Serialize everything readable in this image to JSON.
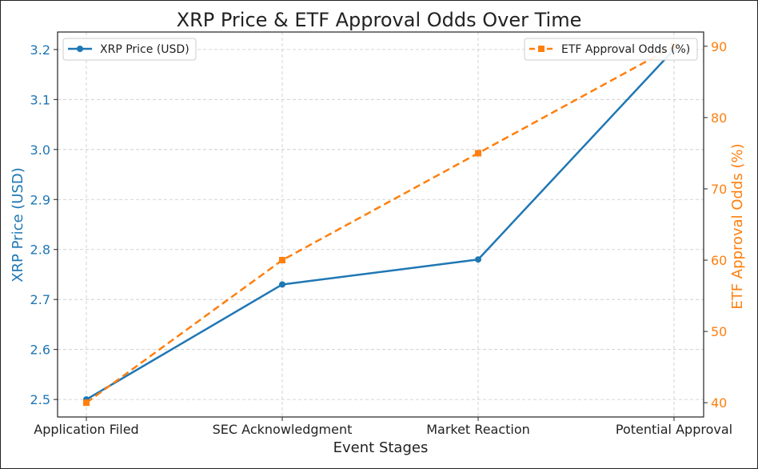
{
  "chart_data": {
    "type": "line",
    "title": "XRP Price & ETF Approval Odds Over Time",
    "xlabel": "Event Stages",
    "categories": [
      "Application Filed",
      "SEC Acknowledgment",
      "Market Reaction",
      "Potential Approval"
    ],
    "left_axis": {
      "label": "XRP Price (USD)",
      "ylim": [
        2.465,
        3.235
      ],
      "ticks": [
        "2.5",
        "2.6",
        "2.7",
        "2.8",
        "2.9",
        "3.0",
        "3.1",
        "3.2"
      ],
      "color": "#1f77b4"
    },
    "right_axis": {
      "label": "ETF Approval Odds (%)",
      "ylim": [
        38,
        92
      ],
      "ticks": [
        "40",
        "50",
        "60",
        "70",
        "80",
        "90"
      ],
      "color": "#ff7f0e"
    },
    "series": [
      {
        "name": "XRP Price (USD)",
        "axis": "left",
        "values": [
          2.5,
          2.73,
          2.78,
          3.2
        ],
        "color": "#1f77b4",
        "line_style": "solid",
        "marker": "circle"
      },
      {
        "name": "ETF Approval Odds (%)",
        "axis": "right",
        "values": [
          40,
          60,
          75,
          90
        ],
        "color": "#ff7f0e",
        "line_style": "dashed",
        "marker": "square"
      }
    ],
    "grid": true,
    "legend": {
      "left_series": "top-left",
      "right_series": "top-right"
    }
  }
}
